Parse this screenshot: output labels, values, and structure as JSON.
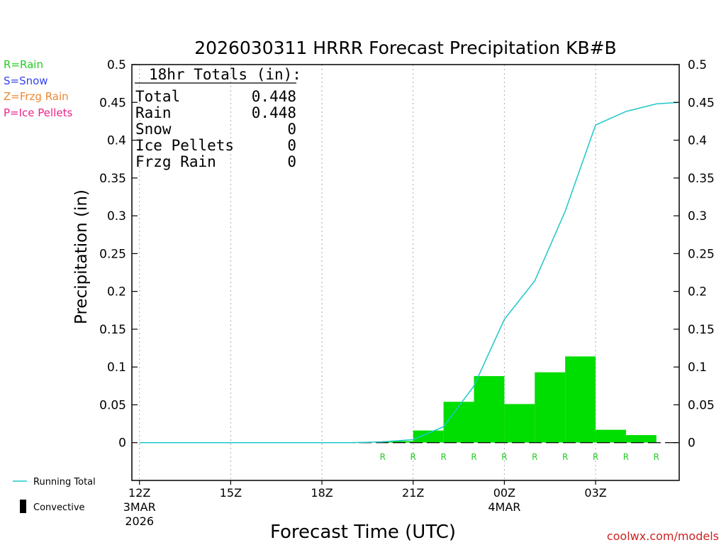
{
  "title": "2026030311 HRRR Forecast Precipitation KB#B",
  "credit": "coolwx.com/models",
  "legend_types": [
    {
      "label": "R=Rain",
      "color": "#22cc22"
    },
    {
      "label": "S=Snow",
      "color": "#3344ee"
    },
    {
      "label": "Z=Frzg Rain",
      "color": "#ee8833"
    },
    {
      "label": "P=Ice Pellets",
      "color": "#ee2288"
    }
  ],
  "legend_bottom": {
    "running_total": "Running Total",
    "convective": "Convective"
  },
  "totals": {
    "header": "18hr Totals (in):",
    "rows": [
      {
        "label": "Total",
        "value": "0.448"
      },
      {
        "label": "Rain",
        "value": "0.448"
      },
      {
        "label": "Snow",
        "value": "0"
      },
      {
        "label": "Ice Pellets",
        "value": "0"
      },
      {
        "label": "Frzg Rain",
        "value": "0"
      }
    ]
  },
  "chart_data": {
    "type": "bar",
    "xlabel": "Forecast Time (UTC)",
    "ylabel": "Precipitation (in)",
    "ylim": [
      -0.05,
      0.5
    ],
    "yticks": [
      "0",
      "0.05",
      "0.1",
      "0.15",
      "0.2",
      "0.25",
      "0.3",
      "0.35",
      "0.4",
      "0.45",
      "0.5"
    ],
    "xlim_hours": [
      11.75,
      29.75
    ],
    "xticks": [
      {
        "hour": 12,
        "label": "12Z",
        "sub1": "3MAR",
        "sub2": "2026"
      },
      {
        "hour": 15,
        "label": "15Z",
        "sub1": "",
        "sub2": ""
      },
      {
        "hour": 18,
        "label": "18Z",
        "sub1": "",
        "sub2": ""
      },
      {
        "hour": 21,
        "label": "21Z",
        "sub1": "",
        "sub2": ""
      },
      {
        "hour": 24,
        "label": "00Z",
        "sub1": "4MAR",
        "sub2": ""
      },
      {
        "hour": 27,
        "label": "03Z",
        "sub1": "",
        "sub2": ""
      }
    ],
    "series": [
      {
        "name": "Running Total",
        "kind": "line",
        "color": "#1fc7c7",
        "hours": [
          12,
          13,
          14,
          15,
          16,
          17,
          18,
          19,
          20,
          21,
          22,
          23,
          24,
          25,
          26,
          27,
          28,
          29,
          29.75
        ],
        "values": [
          0,
          0,
          0,
          0,
          0,
          0,
          0,
          0,
          0.001,
          0.004,
          0.021,
          0.075,
          0.163,
          0.214,
          0.306,
          0.42,
          0.438,
          0.448,
          0.45
        ]
      },
      {
        "name": "Hourly",
        "kind": "bar",
        "color": "#00dd00",
        "bars": [
          {
            "end_hour": 21,
            "value": 0.002
          },
          {
            "end_hour": 22,
            "value": 0.016
          },
          {
            "end_hour": 23,
            "value": 0.054
          },
          {
            "end_hour": 24,
            "value": 0.088
          },
          {
            "end_hour": 25,
            "value": 0.051
          },
          {
            "end_hour": 26,
            "value": 0.093
          },
          {
            "end_hour": 27,
            "value": 0.114
          },
          {
            "end_hour": 28,
            "value": 0.017
          },
          {
            "end_hour": 29,
            "value": 0.01
          }
        ]
      }
    ],
    "type_markers": {
      "color": "#22cc22",
      "items": [
        {
          "hour": 20,
          "label": "R"
        },
        {
          "hour": 21,
          "label": "R"
        },
        {
          "hour": 22,
          "label": "R"
        },
        {
          "hour": 23,
          "label": "R"
        },
        {
          "hour": 24,
          "label": "R"
        },
        {
          "hour": 25,
          "label": "R"
        },
        {
          "hour": 26,
          "label": "R"
        },
        {
          "hour": 27,
          "label": "R"
        },
        {
          "hour": 28,
          "label": "R"
        },
        {
          "hour": 29,
          "label": "R"
        }
      ]
    },
    "grid_x": true,
    "legend_placement": "left"
  }
}
